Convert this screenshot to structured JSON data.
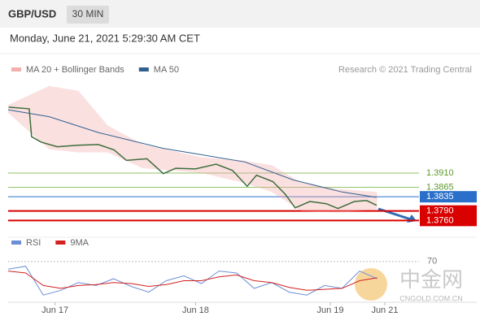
{
  "header": {
    "symbol": "GBP/USD",
    "interval": "30 MIN",
    "timestamp": "Monday, June 21, 2021 5:29:30 AM CET"
  },
  "chart_data": [
    {
      "type": "line",
      "credit": "Research © 2021 Trading Central",
      "xlim": [
        -8,
        72
      ],
      "ylim": [
        1.3725,
        1.42
      ],
      "xticks": [
        {
          "value": 0,
          "label": "Jun 17"
        },
        {
          "value": 24,
          "label": "Jun 18"
        },
        {
          "value": 47,
          "label": "Jun 19"
        },
        {
          "value": 56.3,
          "label": "Jun 21"
        }
      ],
      "series": [
        {
          "name": "MA 20 + Bollinger Bands",
          "color": "#f4a6a6",
          "x": [
            -8,
            -1,
            4,
            9,
            15,
            25,
            32,
            37,
            42,
            48,
            55
          ],
          "upper": [
            1.4125,
            1.4185,
            1.417,
            1.406,
            1.4,
            1.396,
            1.395,
            1.3935,
            1.388,
            1.386,
            1.385
          ],
          "lower": [
            1.41,
            1.3985,
            1.3975,
            1.3975,
            1.3925,
            1.391,
            1.388,
            1.385,
            1.379,
            1.3785,
            1.3795
          ]
        },
        {
          "name": "MA 50",
          "color": "#2f5f8f",
          "x": [
            -8,
            -1,
            7.4,
            18.5,
            32.4,
            40.7,
            49,
            54.9
          ],
          "values": [
            1.411,
            1.4088,
            1.4038,
            1.3988,
            1.3945,
            1.3888,
            1.385,
            1.3833
          ]
        },
        {
          "color": "#3d6e3d",
          "x": [
            -7.9,
            -4.4,
            -4,
            -2.4,
            0.4,
            3.9,
            7.4,
            10.1,
            12.2,
            15.7,
            18.5,
            20.6,
            24,
            27.5,
            30.3,
            32.8,
            34.4,
            37.2,
            39.3,
            41,
            43.5,
            46.3,
            48.3,
            51.1,
            53.2,
            54.9
          ],
          "values": [
            1.4118,
            1.4113,
            1.4025,
            1.4008,
            1.3993,
            1.3998,
            1.4,
            1.3983,
            1.395,
            1.3955,
            1.3908,
            1.3925,
            1.3923,
            1.3938,
            1.3918,
            1.3868,
            1.3903,
            1.3883,
            1.3843,
            1.38,
            1.382,
            1.3813,
            1.3798,
            1.382,
            1.3823,
            1.3808
          ]
        }
      ],
      "levels": [
        {
          "value": 1.391,
          "label": "1.3910",
          "color": "#8fc36a"
        },
        {
          "value": 1.3865,
          "label": "1.3865",
          "color": "#8fc36a"
        },
        {
          "value": 1.3835,
          "label": "1.3835",
          "color": "#2a6fc9"
        },
        {
          "value": 1.379,
          "label": "1.3790",
          "color": "#d90000"
        },
        {
          "value": 1.376,
          "label": "1.3760",
          "color": "#d90000"
        }
      ]
    },
    {
      "type": "line",
      "xlim": [
        -8,
        72
      ],
      "ylim": [
        25,
        80
      ],
      "yticks": [
        70
      ],
      "series": [
        {
          "name": "RSI",
          "color": "#6b8fd6",
          "x": [
            -8,
            -5,
            -2,
            1,
            4,
            7,
            10,
            13,
            16,
            19,
            22,
            25,
            28,
            31,
            34,
            37,
            40,
            43,
            46,
            49,
            52,
            55
          ],
          "values": [
            62,
            65,
            35,
            40,
            48,
            45,
            52,
            44,
            38,
            50,
            55,
            47,
            60,
            58,
            42,
            48,
            38,
            35,
            45,
            42,
            60,
            52
          ]
        },
        {
          "name": "9MA",
          "color": "#d42020",
          "x": [
            -8,
            -5,
            -2,
            1,
            4,
            7,
            10,
            13,
            16,
            19,
            22,
            25,
            28,
            31,
            34,
            37,
            40,
            43,
            46,
            49,
            52,
            55
          ],
          "values": [
            60,
            58,
            45,
            42,
            45,
            46,
            48,
            47,
            44,
            46,
            50,
            50,
            54,
            56,
            50,
            48,
            43,
            40,
            41,
            42,
            50,
            53
          ]
        }
      ]
    }
  ],
  "watermark": {
    "brand": "中金网",
    "site": "CNGOLD.COM.CN"
  }
}
